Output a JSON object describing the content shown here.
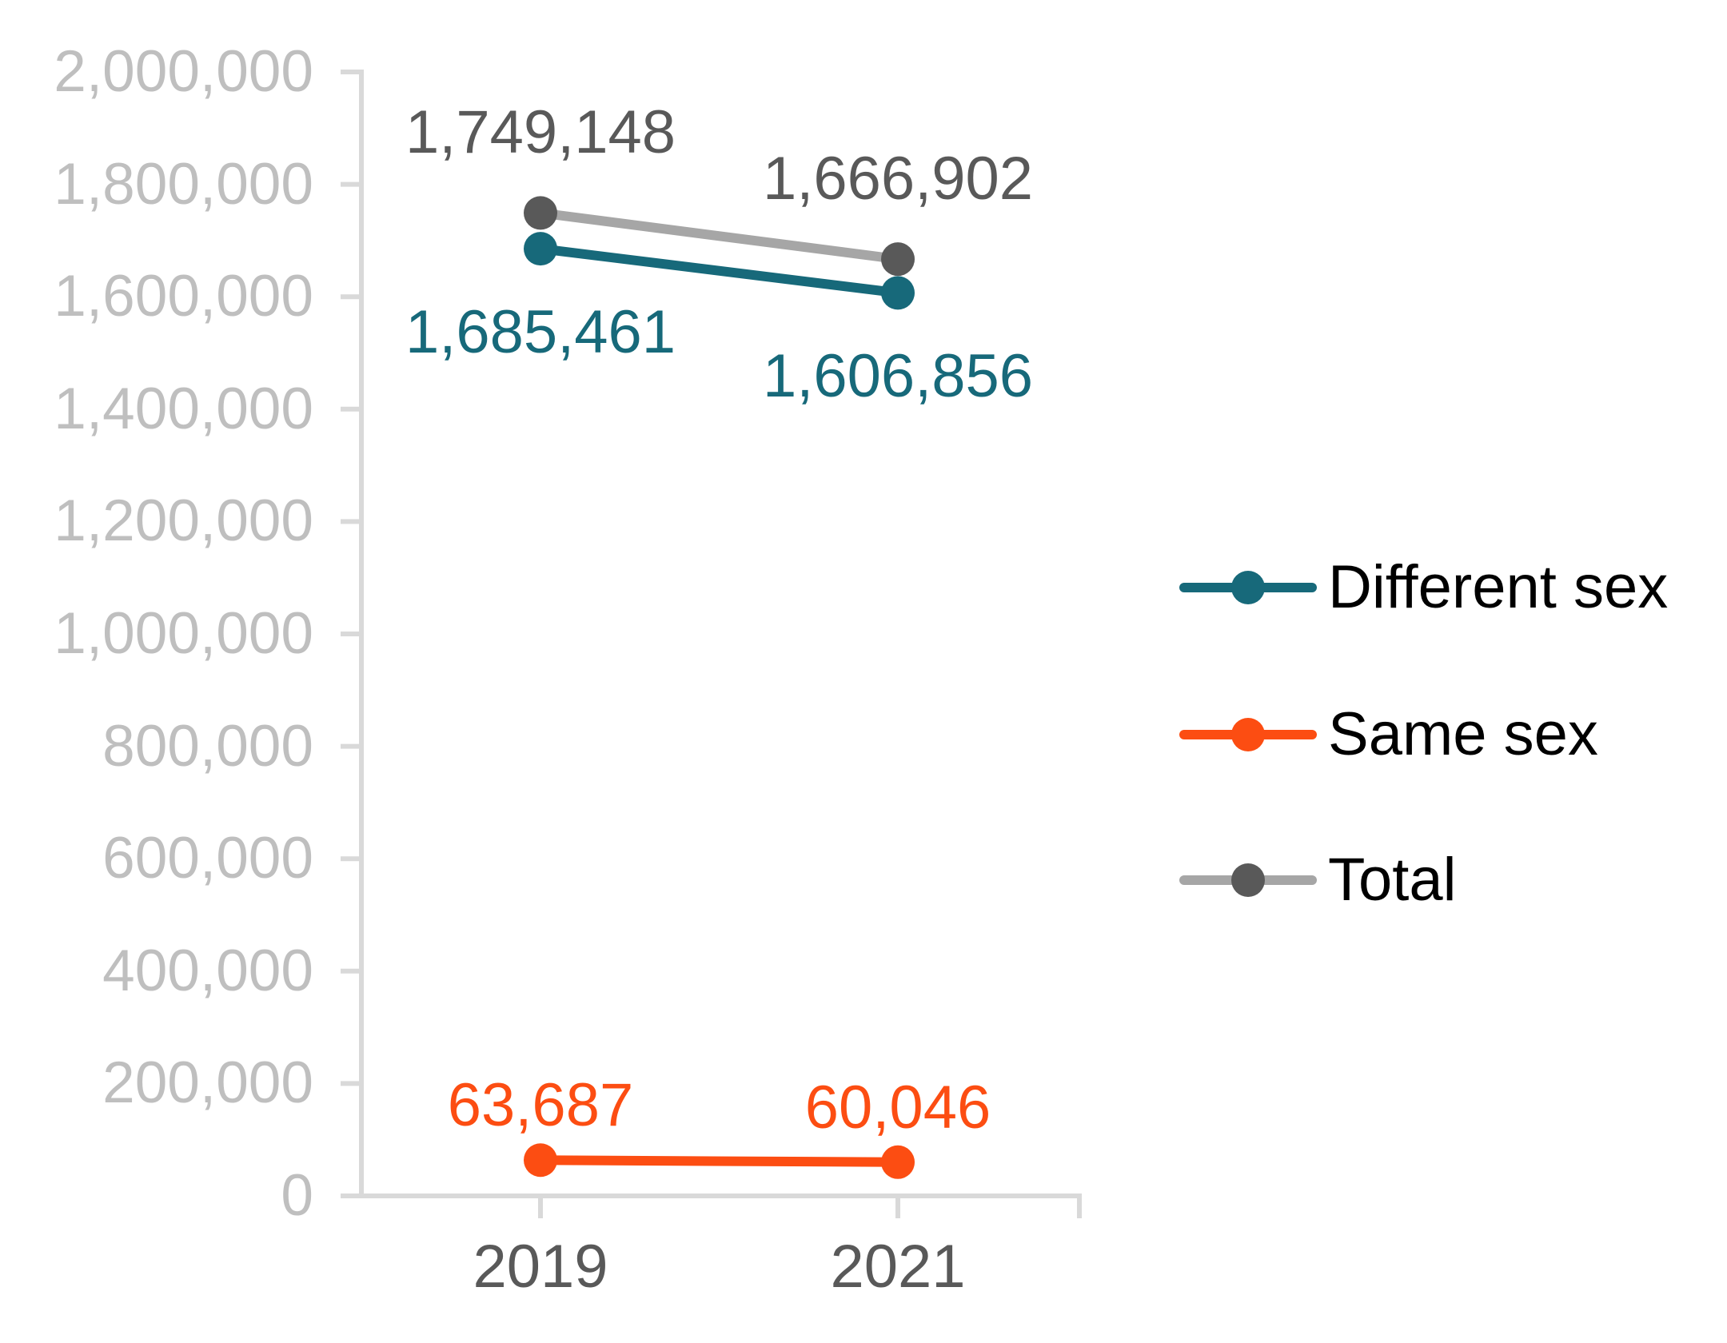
{
  "chart_data": {
    "type": "line",
    "title": "",
    "xlabel": "",
    "ylabel": "",
    "grid": false,
    "background": "#FFFFFF",
    "x": [
      "2019",
      "2021"
    ],
    "series": [
      {
        "name": "Different sex",
        "values": [
          1685461,
          1606856
        ],
        "point_labels": [
          "1,685,461",
          "1,606,856"
        ],
        "line_color": "#17697A",
        "marker_color": "#17697A",
        "label_color": "#17697A",
        "label_placement": "below"
      },
      {
        "name": "Same sex",
        "values": [
          63687,
          60046
        ],
        "point_labels": [
          "63,687",
          "60,046"
        ],
        "line_color": "#FC4D12",
        "marker_color": "#FC4D12",
        "label_color": "#FC4D12",
        "label_placement": "near_above"
      },
      {
        "name": "Total",
        "values": [
          1749148,
          1666902
        ],
        "point_labels": [
          "1,749,148",
          "1,666,902"
        ],
        "line_color": "#A6A6A6",
        "marker_color": "#595959",
        "label_color": "#595959",
        "label_placement": "above"
      }
    ],
    "y_axis": {
      "min": 0,
      "max": 2000000,
      "step": 200000,
      "tick_labels": [
        "0",
        "200,000",
        "400,000",
        "600,000",
        "800,000",
        "1,000,000",
        "1,200,000",
        "1,400,000",
        "1,600,000",
        "1,800,000",
        "2,000,000"
      ]
    },
    "legend": {
      "position": "right",
      "entries": [
        "Different sex",
        "Same sex",
        "Total"
      ]
    },
    "colors": {
      "axis_line": "#D9D9D9",
      "y_tick_text": "#BFBFBF",
      "x_tick_text": "#595959",
      "legend_text": "#000000"
    }
  }
}
